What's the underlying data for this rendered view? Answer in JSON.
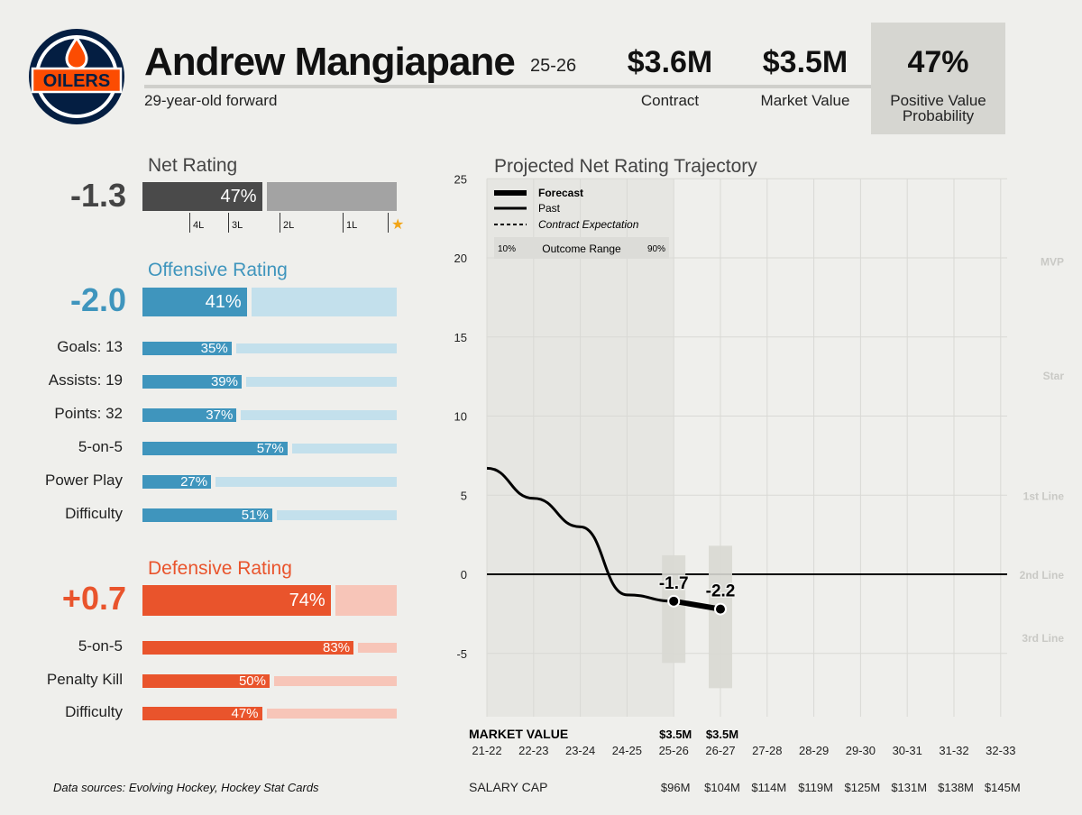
{
  "player": {
    "name": "Andrew Mangiapane",
    "season": "25-26",
    "subtitle": "29-year-old forward"
  },
  "stats": {
    "contract_value": "$3.6M",
    "contract_label": "Contract",
    "market_value": "$3.5M",
    "market_label": "Market Value",
    "pv_value": "47%",
    "pv_label_1": "Positive Value",
    "pv_label_2": "Probability"
  },
  "colors": {
    "net": "#4a4a4a",
    "net_track": "#a3a3a3",
    "off": "#3f95bd",
    "off_track": "#c3e0ec",
    "def": "#e9542c",
    "def_track": "#f7c5b8",
    "star": "#f2a516",
    "logo_navy": "#041e42",
    "logo_orange": "#fc4c02"
  },
  "net_rating": {
    "title": "Net Rating",
    "value": "-1.3",
    "pct": 47,
    "pct_label": "47%",
    "ticks": [
      "4L",
      "3L",
      "2L",
      "1L"
    ],
    "star_icon": "★"
  },
  "offense": {
    "title": "Offensive Rating",
    "value": "-2.0",
    "pct": 41,
    "pct_label": "41%",
    "rows": [
      {
        "label": "Goals: 13",
        "pct": 35,
        "pct_label": "35%"
      },
      {
        "label": "Assists: 19",
        "pct": 39,
        "pct_label": "39%"
      },
      {
        "label": "Points: 32",
        "pct": 37,
        "pct_label": "37%"
      },
      {
        "label": "5-on-5",
        "pct": 57,
        "pct_label": "57%"
      },
      {
        "label": "Power Play",
        "pct": 27,
        "pct_label": "27%"
      },
      {
        "label": "Difficulty",
        "pct": 51,
        "pct_label": "51%"
      }
    ]
  },
  "defense": {
    "title": "Defensive Rating",
    "value": "+0.7",
    "pct": 74,
    "pct_label": "74%",
    "rows": [
      {
        "label": "5-on-5",
        "pct": 83,
        "pct_label": "83%"
      },
      {
        "label": "Penalty Kill",
        "pct": 50,
        "pct_label": "50%"
      },
      {
        "label": "Difficulty",
        "pct": 47,
        "pct_label": "47%"
      }
    ]
  },
  "footer": {
    "sources": "Data sources: Evolving Hockey, Hockey Stat Cards"
  },
  "chart_data": {
    "type": "line",
    "title": "Projected Net Rating Trajectory",
    "seasons": [
      "21-22",
      "22-23",
      "23-24",
      "24-25",
      "25-26",
      "26-27",
      "27-28",
      "28-29",
      "29-30",
      "30-31",
      "31-32",
      "32-33"
    ],
    "ylim": [
      -9,
      25
    ],
    "yticks": [
      25,
      20,
      15,
      10,
      5,
      0,
      -5
    ],
    "past_series": {
      "name": "Past",
      "x": [
        "21-22",
        "22-23",
        "23-24",
        "24-25",
        "25-26"
      ],
      "values": [
        6.7,
        4.8,
        3.0,
        -1.3,
        -1.7
      ]
    },
    "forecast_series": {
      "name": "Forecast",
      "x": [
        "25-26",
        "26-27"
      ],
      "values": [
        -1.7,
        -2.2
      ],
      "point_labels": [
        "-1.7",
        "-2.2"
      ]
    },
    "contract_expectation": {
      "name": "Contract Expectation",
      "x": [
        "25-26",
        "26-27"
      ],
      "values": [
        -1.7,
        -2.1
      ]
    },
    "outcome_range": [
      {
        "x": "25-26",
        "low": -5.6,
        "high": 1.2
      },
      {
        "x": "26-27",
        "low": -7.2,
        "high": 1.8
      }
    ],
    "past_shade_range": [
      "21-22",
      "25-26"
    ],
    "legend": {
      "forecast": "Forecast",
      "past": "Past",
      "contract": "Contract Expectation",
      "range_low": "10%",
      "range_label": "Outcome Range",
      "range_high": "90%"
    },
    "tiers": [
      {
        "label": "MVP",
        "y": 19.8
      },
      {
        "label": "Star",
        "y": 12.6
      },
      {
        "label": "1st Line",
        "y": 5.0
      },
      {
        "label": "2nd Line",
        "y": 0
      },
      {
        "label": "3rd Line",
        "y": -4.0
      }
    ],
    "market_value_label": "MARKET VALUE",
    "market_values": [
      {
        "x": "25-26",
        "label": "$3.5M"
      },
      {
        "x": "26-27",
        "label": "$3.5M"
      }
    ],
    "salary_cap_label": "SALARY CAP",
    "salary_cap": [
      {
        "x": "25-26",
        "label": "$96M"
      },
      {
        "x": "26-27",
        "label": "$104M"
      },
      {
        "x": "27-28",
        "label": "$114M"
      },
      {
        "x": "28-29",
        "label": "$119M"
      },
      {
        "x": "29-30",
        "label": "$125M"
      },
      {
        "x": "30-31",
        "label": "$131M"
      },
      {
        "x": "31-32",
        "label": "$138M"
      },
      {
        "x": "32-33",
        "label": "$145M"
      }
    ]
  }
}
